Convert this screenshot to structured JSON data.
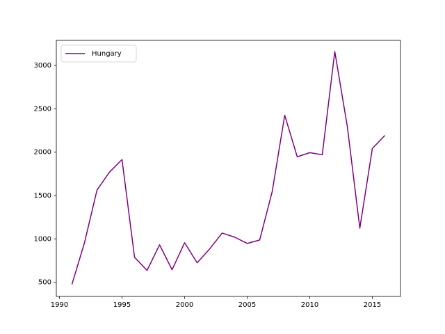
{
  "chart_data": {
    "type": "line",
    "x": [
      1991,
      1992,
      1993,
      1994,
      1995,
      1996,
      1997,
      1998,
      1999,
      2000,
      2001,
      2002,
      2003,
      2004,
      2005,
      2006,
      2007,
      2008,
      2009,
      2010,
      2011,
      2012,
      2013,
      2014,
      2015,
      2016
    ],
    "series": [
      {
        "name": "Hungary",
        "color": "#800080",
        "values": [
          476,
          955,
          1562,
          1770,
          1914,
          788,
          636,
          931,
          644,
          955,
          724,
          883,
          1067,
          1019,
          947,
          987,
          1546,
          2425,
          1946,
          1994,
          1970,
          3160,
          2297,
          1123,
          2042,
          2193
        ]
      }
    ],
    "xlim": [
      1989.75,
      2017.25
    ],
    "xticks": [
      1990,
      1995,
      2000,
      2005,
      2010,
      2015
    ],
    "ylim": [
      336,
      3289
    ],
    "yticks": [
      500,
      1000,
      1500,
      2000,
      2500,
      3000
    ],
    "legend": "upper left"
  }
}
